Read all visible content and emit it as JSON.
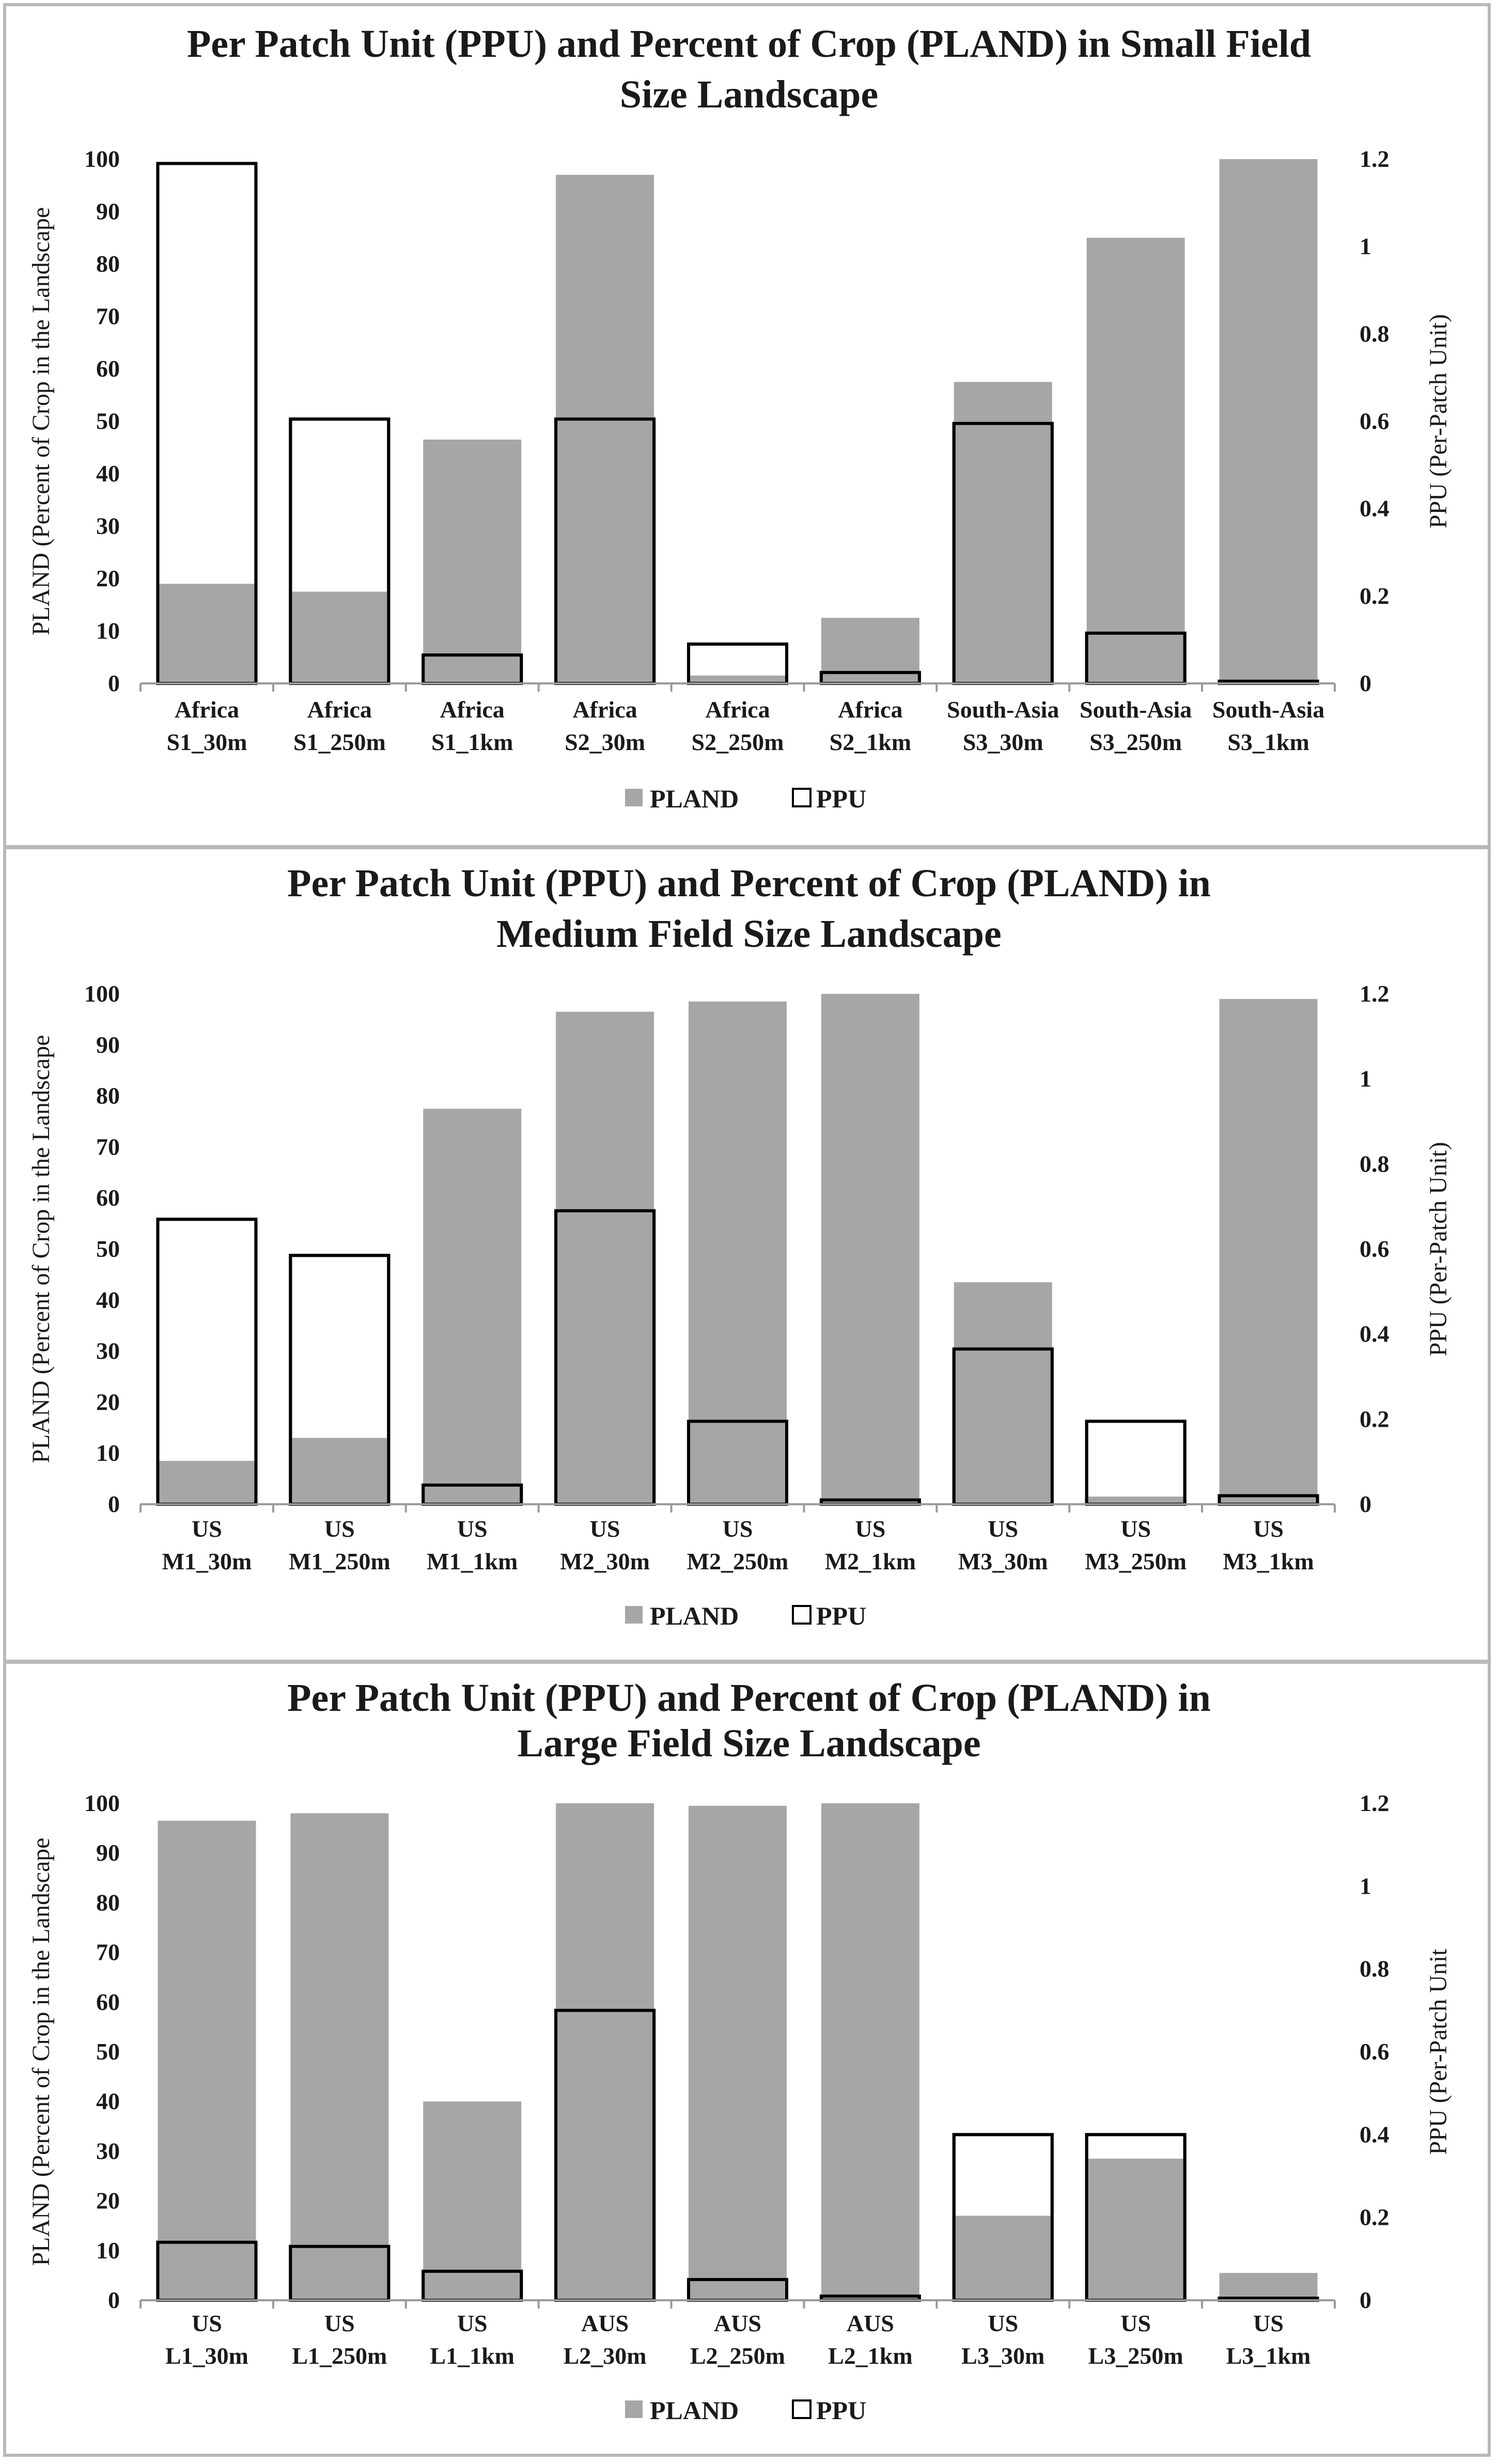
{
  "chart_data": [
    {
      "type": "bar",
      "title": "Per Patch Unit (PPU) and Percent of Crop (PLAND) in Small Field Size Landscape",
      "title_lines": [
        "Per Patch Unit (PPU) and Percent of Crop (PLAND) in Small Field",
        "Size Landscape"
      ],
      "categories": [
        [
          "Africa",
          "S1_30m"
        ],
        [
          "Africa",
          "S1_250m"
        ],
        [
          "Africa",
          "S1_1km"
        ],
        [
          "Africa",
          "S2_30m"
        ],
        [
          "Africa",
          "S2_250m"
        ],
        [
          "Africa",
          "S2_1km"
        ],
        [
          "South-Asia",
          "S3_30m"
        ],
        [
          "South-Asia",
          "S3_250m"
        ],
        [
          "South-Asia",
          "S3_1km"
        ]
      ],
      "series": [
        {
          "name": "PLAND",
          "axis": "left",
          "color": "#a6a6a6",
          "values": [
            19,
            17.5,
            46.5,
            97,
            1.5,
            12.5,
            57.5,
            85,
            100
          ]
        },
        {
          "name": "PPU",
          "axis": "right",
          "color": "#ffffff",
          "values": [
            1.19,
            0.605,
            0.065,
            0.605,
            0.09,
            0.025,
            0.595,
            0.115,
            0.005
          ]
        }
      ],
      "ylabel": "PLAND (Percent of Crop in the Landscape",
      "ylabel_right": "PPU (Per-Patch Unit)",
      "ylim": [
        0,
        100
      ],
      "yticks": [
        "0",
        "10",
        "20",
        "30",
        "40",
        "50",
        "60",
        "70",
        "80",
        "90",
        "100"
      ],
      "ylim_right": [
        0,
        1.2
      ],
      "yticks_right": [
        "0",
        "0.2",
        "0.4",
        "0.6",
        "0.8",
        "1",
        "1.2"
      ],
      "legend": [
        "PLAND",
        "PPU"
      ],
      "legend_position": "bottom"
    },
    {
      "type": "bar",
      "title": "Per Patch Unit (PPU) and Percent of Crop (PLAND) in Medium Field Size Landscape",
      "title_lines": [
        "Per Patch Unit (PPU) and Percent of Crop (PLAND) in",
        "Medium Field Size Landscape"
      ],
      "categories": [
        [
          "US",
          "M1_30m"
        ],
        [
          "US",
          "M1_250m"
        ],
        [
          "US",
          "M1_1km"
        ],
        [
          "US",
          "M2_30m"
        ],
        [
          "US",
          "M2_250m"
        ],
        [
          "US",
          "M2_1km"
        ],
        [
          "US",
          "M3_30m"
        ],
        [
          "US",
          "M3_250m"
        ],
        [
          "US",
          "M3_1km"
        ]
      ],
      "series": [
        {
          "name": "PLAND",
          "axis": "left",
          "color": "#a6a6a6",
          "values": [
            8.5,
            13,
            77.5,
            96.5,
            98.5,
            100,
            43.5,
            1.5,
            99
          ]
        },
        {
          "name": "PPU",
          "axis": "right",
          "color": "#ffffff",
          "values": [
            0.67,
            0.585,
            0.045,
            0.69,
            0.195,
            0.01,
            0.365,
            0.195,
            0.02
          ]
        }
      ],
      "ylabel": "PLAND (Percent of Crop in the Landscape",
      "ylabel_right": "PPU (Per-Patch Unit)",
      "ylim": [
        0,
        100
      ],
      "yticks": [
        "0",
        "10",
        "20",
        "30",
        "40",
        "50",
        "60",
        "70",
        "80",
        "90",
        "100"
      ],
      "ylim_right": [
        0,
        1.2
      ],
      "yticks_right": [
        "0",
        "0.2",
        "0.4",
        "0.6",
        "0.8",
        "1",
        "1.2"
      ],
      "legend": [
        "PLAND",
        "PPU"
      ],
      "legend_position": "bottom"
    },
    {
      "type": "bar",
      "title": "Per Patch Unit (PPU) and Percent of Crop (PLAND) in Large Field Size Landscape",
      "title_lines": [
        "Per Patch Unit (PPU) and Percent of Crop (PLAND) in",
        "Large Field Size Landscape"
      ],
      "categories": [
        [
          "US",
          "L1_30m"
        ],
        [
          "US",
          "L1_250m"
        ],
        [
          "US",
          "L1_1km"
        ],
        [
          "AUS",
          "L2_30m"
        ],
        [
          "AUS",
          "L2_250m"
        ],
        [
          "AUS",
          "L2_1km"
        ],
        [
          "US",
          "L3_30m"
        ],
        [
          "US",
          "L3_250m"
        ],
        [
          "US",
          "L3_1km"
        ]
      ],
      "series": [
        {
          "name": "PLAND",
          "axis": "left",
          "color": "#a6a6a6",
          "values": [
            96.5,
            98,
            40,
            100,
            99.5,
            100,
            17,
            28.5,
            5.5
          ]
        },
        {
          "name": "PPU",
          "axis": "right",
          "color": "#ffffff",
          "values": [
            0.14,
            0.13,
            0.07,
            0.7,
            0.05,
            0.01,
            0.4,
            0.4,
            0.005
          ]
        }
      ],
      "ylabel": "PLAND (Percent of Crop in the Landscape",
      "ylabel_right": "PPU (Per-Patch Unit",
      "ylim": [
        0,
        100
      ],
      "yticks": [
        "0",
        "10",
        "20",
        "30",
        "40",
        "50",
        "60",
        "70",
        "80",
        "90",
        "100"
      ],
      "ylim_right": [
        0,
        1.2
      ],
      "yticks_right": [
        "0",
        "0.2",
        "0.4",
        "0.6",
        "0.8",
        "1",
        "1.2"
      ],
      "legend": [
        "PLAND",
        "PPU"
      ],
      "legend_position": "bottom"
    }
  ]
}
